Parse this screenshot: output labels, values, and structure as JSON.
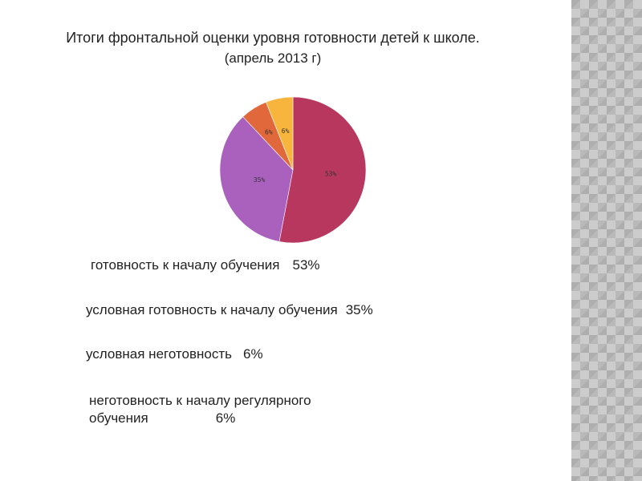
{
  "chart_data": {
    "type": "pie",
    "title": "Итоги фронтальной оценки уровня готовности детей к школе.",
    "subtitle": "(апрель 2013 г)",
    "slices": [
      {
        "label": "готовность к началу обучения",
        "value": 53,
        "display": "53%",
        "color": "#b8375f"
      },
      {
        "label": "условная готовность к началу обучения",
        "value": 35,
        "display": "35%",
        "color": "#a961bd"
      },
      {
        "label": "условная неготовность",
        "value": 6,
        "display": "6%",
        "color": "#e0683a"
      },
      {
        "label": "неготовность к началу регулярного обучения",
        "value": 6,
        "display": "6%",
        "color": "#f7b53d"
      }
    ],
    "legend_lines": [
      {
        "text": "готовность к началу обучения",
        "value": "53%"
      },
      {
        "text": "условная готовность к началу обучения",
        "value": "35%"
      },
      {
        "text": "условная неготовность",
        "value": "6%"
      },
      {
        "text": "неготовность к началу регулярного",
        "text2": "обучения",
        "value": "6%"
      }
    ]
  }
}
